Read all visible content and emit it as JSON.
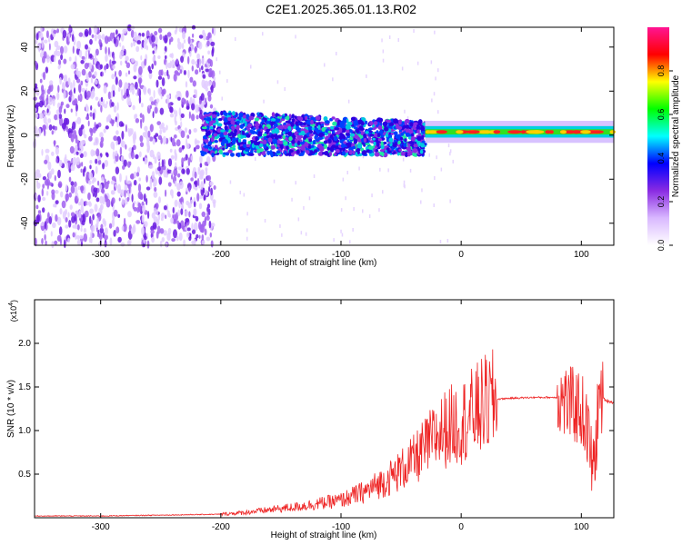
{
  "title": "C2E1.2025.365.01.13.R02",
  "chart_data": [
    {
      "type": "heatmap",
      "xlabel": "Height of straight line (km)",
      "ylabel": "Frequency (Hz)",
      "xlim": [
        -355,
        127
      ],
      "ylim": [
        -50,
        49
      ],
      "xticks": [
        -300,
        -200,
        -100,
        0,
        100
      ],
      "xtick_labels": [
        "-300",
        "-200",
        "-100",
        "0",
        "100"
      ],
      "yticks": [
        -40,
        -20,
        0,
        20,
        40
      ],
      "ytick_labels": [
        "-40",
        "-20",
        "0",
        "20",
        "40"
      ],
      "colorbar": {
        "label": "Normalized spectral amplitude",
        "range": [
          0,
          1
        ],
        "ticks": [
          0.0,
          0.2,
          0.4,
          0.6,
          0.8
        ],
        "tick_labels": [
          "0.0",
          "0.2",
          "0.4",
          "0.6",
          "0.8"
        ],
        "colormap": [
          "#ffffff",
          "#d9b8ff",
          "#8a2be2",
          "#0000ff",
          "#00ffff",
          "#00ff00",
          "#ffff00",
          "#ff0000",
          "#ff1493"
        ]
      },
      "regions": [
        {
          "x_range": [
            -355,
            -205
          ],
          "freq_range": [
            -50,
            49
          ],
          "amplitude": 0.1,
          "note_color": "#7b2cf0"
        },
        {
          "x_range": [
            -215,
            -30
          ],
          "freq_range": [
            -10,
            12
          ],
          "amplitude": 0.3,
          "note_color": "#00c8ff"
        },
        {
          "x_range": [
            -30,
            127
          ],
          "freq_center": 1.5,
          "freq_halfwidth": 2,
          "amplitude": 0.8,
          "note_color": "#ff2020"
        }
      ]
    },
    {
      "type": "line",
      "xlabel": "Height of straight line (km)",
      "ylabel": "SNR (10 * v/v)",
      "scale_label": "(x10",
      "scale_exp": "4",
      "scale_close": ")",
      "xlim": [
        -355,
        127
      ],
      "ylim": [
        0,
        2.5
      ],
      "xticks": [
        -300,
        -200,
        -100,
        0,
        100
      ],
      "xtick_labels": [
        "-300",
        "-200",
        "-100",
        "0",
        "100"
      ],
      "yticks": [
        0.5,
        1.0,
        1.5,
        2.0
      ],
      "ytick_labels": [
        "0.5",
        "1.0",
        "1.5",
        "2.0"
      ],
      "series": [
        {
          "color": "#ee2222",
          "x": [
            -355,
            -300,
            -250,
            -200,
            -180,
            -160,
            -140,
            -120,
            -100,
            -80,
            -60,
            -40,
            -30,
            -20,
            -10,
            0,
            10,
            20,
            30,
            40,
            60,
            80,
            90,
            100,
            105,
            110,
            115,
            120,
            127
          ],
          "y": [
            0.02,
            0.02,
            0.03,
            0.04,
            0.06,
            0.09,
            0.12,
            0.16,
            0.2,
            0.3,
            0.45,
            0.65,
            0.8,
            0.95,
            1.05,
            1.1,
            1.2,
            1.3,
            1.36,
            1.37,
            1.38,
            1.38,
            1.3,
            1.25,
            1.0,
            0.5,
            1.4,
            1.35,
            1.32
          ]
        }
      ]
    }
  ]
}
